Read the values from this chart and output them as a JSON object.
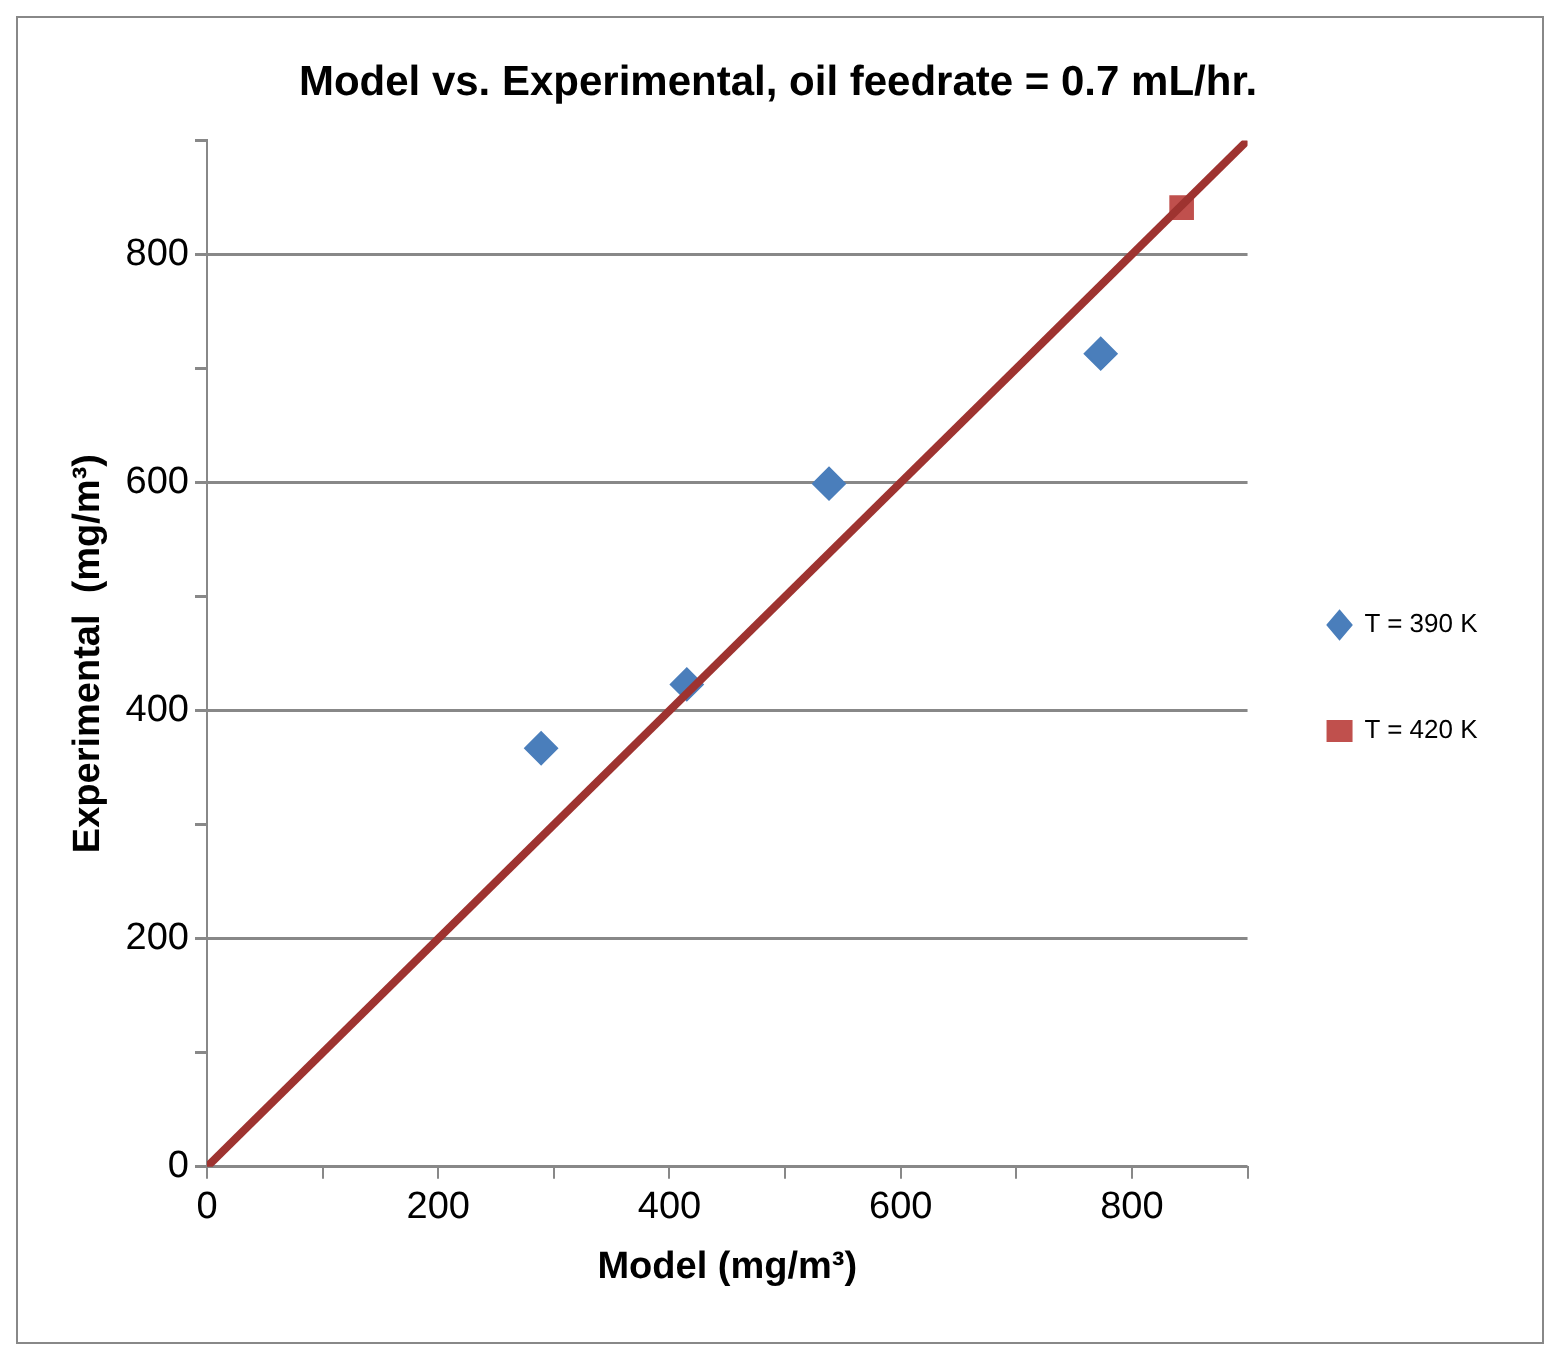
{
  "chart_data": {
    "type": "scatter",
    "title": "Model vs. Experimental, oil feedrate = 0.7 mL/hr.",
    "xlabel": "Model (mg/m³)",
    "ylabel": "Experimental  (mg/m³)",
    "xlim": [
      0,
      900
    ],
    "ylim": [
      0,
      900
    ],
    "xticks": [
      0,
      {
        "value": 100,
        "label": null
      },
      200,
      {
        "value": 300,
        "label": null
      },
      400,
      {
        "value": 500,
        "label": null
      },
      600,
      {
        "value": 700,
        "label": null
      },
      800,
      {
        "value": 900,
        "label": null
      }
    ],
    "yticks": [
      0,
      {
        "value": 100,
        "label": null
      },
      200,
      {
        "value": 300,
        "label": null
      },
      400,
      {
        "value": 500,
        "label": null
      },
      600,
      {
        "value": 700,
        "label": null
      },
      800,
      {
        "value": 900,
        "label": null
      }
    ],
    "grid": "y",
    "legend": "right",
    "series": [
      {
        "type": "line",
        "color": "#9e3330",
        "x": [
          0,
          900
        ],
        "values": [
          0,
          900
        ],
        "marker": "none"
      },
      {
        "name": "T = 390 K",
        "color": "#4a7ebb",
        "x": [
          289,
          415,
          538,
          773
        ],
        "values": [
          367,
          423,
          599,
          713
        ],
        "marker": "diamond"
      },
      {
        "name": "T = 420 K",
        "color": "#c0504d",
        "x": [
          843
        ],
        "values": [
          841
        ],
        "marker": "square"
      }
    ]
  }
}
